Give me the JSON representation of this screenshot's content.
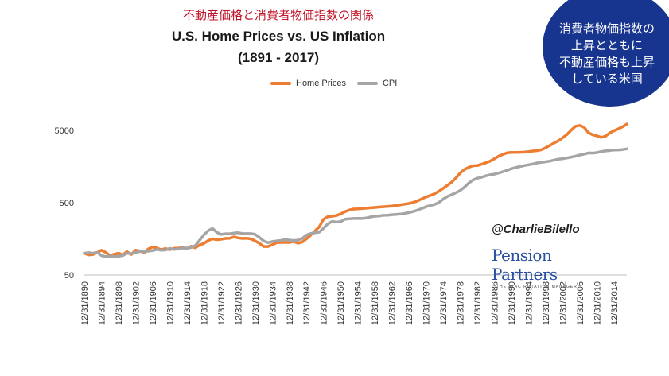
{
  "header": {
    "jp_title": "不動産価格と消費者物価指数の関係",
    "title_line1": "U.S. Home Prices vs. US Inflation",
    "title_line2": "(1891 - 2017)"
  },
  "badge": {
    "lines": [
      "消費者物価指数の",
      "上昇とともに",
      "不動産価格も上昇",
      "している米国"
    ]
  },
  "branding": {
    "handle": "@CharlieBilello",
    "logo_name": "Pension Partners",
    "logo_tagline": "THE ATAC ROTATION MANAGER"
  },
  "colors": {
    "home": "#ed7d31",
    "cpi": "#a5a5a5",
    "badge": "#17348f",
    "accent_title": "#c0152a"
  },
  "chart_data": {
    "type": "line",
    "title": "U.S. Home Prices vs. US Inflation",
    "subtitle": "(1891 - 2017)",
    "yscale": "log",
    "ylim": [
      50,
      8000
    ],
    "yticks": [
      50,
      500,
      5000
    ],
    "xlim": [
      1890,
      2017
    ],
    "xticks": [
      "12/31/1890",
      "12/31/1894",
      "12/31/1898",
      "12/31/1902",
      "12/31/1906",
      "12/31/1910",
      "12/31/1914",
      "12/31/1918",
      "12/31/1922",
      "12/31/1926",
      "12/31/1930",
      "12/31/1934",
      "12/31/1938",
      "12/31/1942",
      "12/31/1946",
      "12/31/1950",
      "12/31/1954",
      "12/31/1958",
      "12/31/1962",
      "12/31/1966",
      "12/31/1970",
      "12/31/1974",
      "12/31/1978",
      "12/31/1982",
      "12/31/1986",
      "12/31/1990",
      "12/31/1994",
      "12/31/1998",
      "12/31/2002",
      "12/31/2006",
      "12/31/2010",
      "12/31/2014"
    ],
    "legend_position": "top",
    "grid": false,
    "series": [
      {
        "name": "Home Prices",
        "color": "#ed7d31",
        "points": [
          [
            1890,
            100
          ],
          [
            1891,
            95
          ],
          [
            1892,
            96
          ],
          [
            1893,
            102
          ],
          [
            1894,
            110
          ],
          [
            1895,
            103
          ],
          [
            1896,
            93
          ],
          [
            1897,
            97
          ],
          [
            1898,
            100
          ],
          [
            1899,
            95
          ],
          [
            1900,
            105
          ],
          [
            1901,
            96
          ],
          [
            1902,
            110
          ],
          [
            1903,
            108
          ],
          [
            1904,
            102
          ],
          [
            1905,
            115
          ],
          [
            1906,
            122
          ],
          [
            1907,
            118
          ],
          [
            1908,
            112
          ],
          [
            1909,
            116
          ],
          [
            1910,
            112
          ],
          [
            1911,
            117
          ],
          [
            1912,
            118
          ],
          [
            1913,
            120
          ],
          [
            1914,
            116
          ],
          [
            1915,
            125
          ],
          [
            1916,
            119
          ],
          [
            1917,
            130
          ],
          [
            1918,
            137
          ],
          [
            1919,
            150
          ],
          [
            1920,
            158
          ],
          [
            1921,
            154
          ],
          [
            1922,
            156
          ],
          [
            1923,
            160
          ],
          [
            1924,
            161
          ],
          [
            1925,
            168
          ],
          [
            1926,
            163
          ],
          [
            1927,
            160
          ],
          [
            1928,
            161
          ],
          [
            1929,
            158
          ],
          [
            1930,
            148
          ],
          [
            1931,
            137
          ],
          [
            1932,
            124
          ],
          [
            1933,
            124
          ],
          [
            1934,
            131
          ],
          [
            1935,
            140
          ],
          [
            1936,
            141
          ],
          [
            1937,
            141
          ],
          [
            1938,
            141
          ],
          [
            1939,
            145
          ],
          [
            1940,
            138
          ],
          [
            1941,
            143
          ],
          [
            1942,
            158
          ],
          [
            1943,
            178
          ],
          [
            1944,
            203
          ],
          [
            1945,
            232
          ],
          [
            1946,
            295
          ],
          [
            1947,
            320
          ],
          [
            1948,
            325
          ],
          [
            1949,
            332
          ],
          [
            1950,
            350
          ],
          [
            1951,
            375
          ],
          [
            1952,
            395
          ],
          [
            1953,
            408
          ],
          [
            1954,
            410
          ],
          [
            1955,
            415
          ],
          [
            1956,
            420
          ],
          [
            1957,
            425
          ],
          [
            1958,
            430
          ],
          [
            1959,
            435
          ],
          [
            1960,
            440
          ],
          [
            1961,
            445
          ],
          [
            1962,
            450
          ],
          [
            1963,
            458
          ],
          [
            1964,
            468
          ],
          [
            1965,
            478
          ],
          [
            1966,
            488
          ],
          [
            1967,
            505
          ],
          [
            1968,
            530
          ],
          [
            1969,
            565
          ],
          [
            1970,
            600
          ],
          [
            1971,
            630
          ],
          [
            1972,
            665
          ],
          [
            1973,
            720
          ],
          [
            1974,
            790
          ],
          [
            1975,
            870
          ],
          [
            1976,
            960
          ],
          [
            1977,
            1100
          ],
          [
            1978,
            1290
          ],
          [
            1979,
            1440
          ],
          [
            1980,
            1540
          ],
          [
            1981,
            1620
          ],
          [
            1982,
            1630
          ],
          [
            1983,
            1700
          ],
          [
            1984,
            1780
          ],
          [
            1985,
            1880
          ],
          [
            1986,
            2020
          ],
          [
            1987,
            2200
          ],
          [
            1988,
            2320
          ],
          [
            1989,
            2450
          ],
          [
            1990,
            2480
          ],
          [
            1991,
            2480
          ],
          [
            1992,
            2490
          ],
          [
            1993,
            2500
          ],
          [
            1994,
            2540
          ],
          [
            1995,
            2590
          ],
          [
            1996,
            2620
          ],
          [
            1997,
            2700
          ],
          [
            1998,
            2880
          ],
          [
            1999,
            3100
          ],
          [
            2000,
            3350
          ],
          [
            2001,
            3600
          ],
          [
            2002,
            3950
          ],
          [
            2003,
            4400
          ],
          [
            2004,
            5050
          ],
          [
            2005,
            5700
          ],
          [
            2006,
            5850
          ],
          [
            2007,
            5500
          ],
          [
            2008,
            4650
          ],
          [
            2009,
            4350
          ],
          [
            2010,
            4200
          ],
          [
            2011,
            4000
          ],
          [
            2012,
            4150
          ],
          [
            2013,
            4600
          ],
          [
            2014,
            4950
          ],
          [
            2015,
            5250
          ],
          [
            2016,
            5600
          ],
          [
            2017,
            6100
          ]
        ]
      },
      {
        "name": "CPI",
        "color": "#a5a5a5",
        "points": [
          [
            1890,
            100
          ],
          [
            1891,
            102
          ],
          [
            1892,
            100
          ],
          [
            1893,
            103
          ],
          [
            1894,
            93
          ],
          [
            1895,
            90
          ],
          [
            1896,
            91
          ],
          [
            1897,
            90
          ],
          [
            1898,
            91
          ],
          [
            1899,
            93
          ],
          [
            1900,
            100
          ],
          [
            1901,
            99
          ],
          [
            1902,
            102
          ],
          [
            1903,
            106
          ],
          [
            1904,
            105
          ],
          [
            1905,
            107
          ],
          [
            1906,
            109
          ],
          [
            1907,
            113
          ],
          [
            1908,
            110
          ],
          [
            1909,
            111
          ],
          [
            1910,
            117
          ],
          [
            1911,
            113
          ],
          [
            1912,
            115
          ],
          [
            1913,
            118
          ],
          [
            1914,
            118
          ],
          [
            1915,
            120
          ],
          [
            1916,
            128
          ],
          [
            1917,
            152
          ],
          [
            1918,
            180
          ],
          [
            1919,
            205
          ],
          [
            1920,
            220
          ],
          [
            1921,
            195
          ],
          [
            1922,
            182
          ],
          [
            1923,
            186
          ],
          [
            1924,
            186
          ],
          [
            1925,
            190
          ],
          [
            1926,
            192
          ],
          [
            1927,
            188
          ],
          [
            1928,
            187
          ],
          [
            1929,
            187
          ],
          [
            1930,
            182
          ],
          [
            1931,
            165
          ],
          [
            1932,
            148
          ],
          [
            1933,
            140
          ],
          [
            1934,
            145
          ],
          [
            1935,
            148
          ],
          [
            1936,
            150
          ],
          [
            1937,
            155
          ],
          [
            1938,
            152
          ],
          [
            1939,
            150
          ],
          [
            1940,
            152
          ],
          [
            1941,
            160
          ],
          [
            1942,
            178
          ],
          [
            1943,
            188
          ],
          [
            1944,
            192
          ],
          [
            1945,
            196
          ],
          [
            1946,
            222
          ],
          [
            1947,
            255
          ],
          [
            1948,
            275
          ],
          [
            1949,
            270
          ],
          [
            1950,
            273
          ],
          [
            1951,
            296
          ],
          [
            1952,
            300
          ],
          [
            1953,
            302
          ],
          [
            1954,
            303
          ],
          [
            1955,
            302
          ],
          [
            1956,
            307
          ],
          [
            1957,
            318
          ],
          [
            1958,
            325
          ],
          [
            1959,
            328
          ],
          [
            1960,
            334
          ],
          [
            1961,
            336
          ],
          [
            1962,
            341
          ],
          [
            1963,
            345
          ],
          [
            1964,
            348
          ],
          [
            1965,
            355
          ],
          [
            1966,
            365
          ],
          [
            1967,
            378
          ],
          [
            1968,
            395
          ],
          [
            1969,
            416
          ],
          [
            1970,
            440
          ],
          [
            1971,
            458
          ],
          [
            1972,
            473
          ],
          [
            1973,
            503
          ],
          [
            1974,
            560
          ],
          [
            1975,
            610
          ],
          [
            1976,
            645
          ],
          [
            1977,
            687
          ],
          [
            1978,
            739
          ],
          [
            1979,
            822
          ],
          [
            1980,
            933
          ],
          [
            1981,
            1030
          ],
          [
            1982,
            1090
          ],
          [
            1983,
            1125
          ],
          [
            1984,
            1175
          ],
          [
            1985,
            1215
          ],
          [
            1986,
            1240
          ],
          [
            1987,
            1285
          ],
          [
            1988,
            1340
          ],
          [
            1989,
            1400
          ],
          [
            1990,
            1475
          ],
          [
            1991,
            1535
          ],
          [
            1992,
            1580
          ],
          [
            1993,
            1630
          ],
          [
            1994,
            1670
          ],
          [
            1995,
            1715
          ],
          [
            1996,
            1770
          ],
          [
            1997,
            1810
          ],
          [
            1998,
            1840
          ],
          [
            1999,
            1880
          ],
          [
            2000,
            1945
          ],
          [
            2001,
            2000
          ],
          [
            2002,
            2030
          ],
          [
            2003,
            2080
          ],
          [
            2004,
            2135
          ],
          [
            2005,
            2205
          ],
          [
            2006,
            2280
          ],
          [
            2007,
            2345
          ],
          [
            2008,
            2435
          ],
          [
            2009,
            2425
          ],
          [
            2010,
            2465
          ],
          [
            2011,
            2545
          ],
          [
            2012,
            2595
          ],
          [
            2013,
            2630
          ],
          [
            2014,
            2675
          ],
          [
            2015,
            2680
          ],
          [
            2016,
            2710
          ],
          [
            2017,
            2770
          ]
        ]
      }
    ]
  }
}
